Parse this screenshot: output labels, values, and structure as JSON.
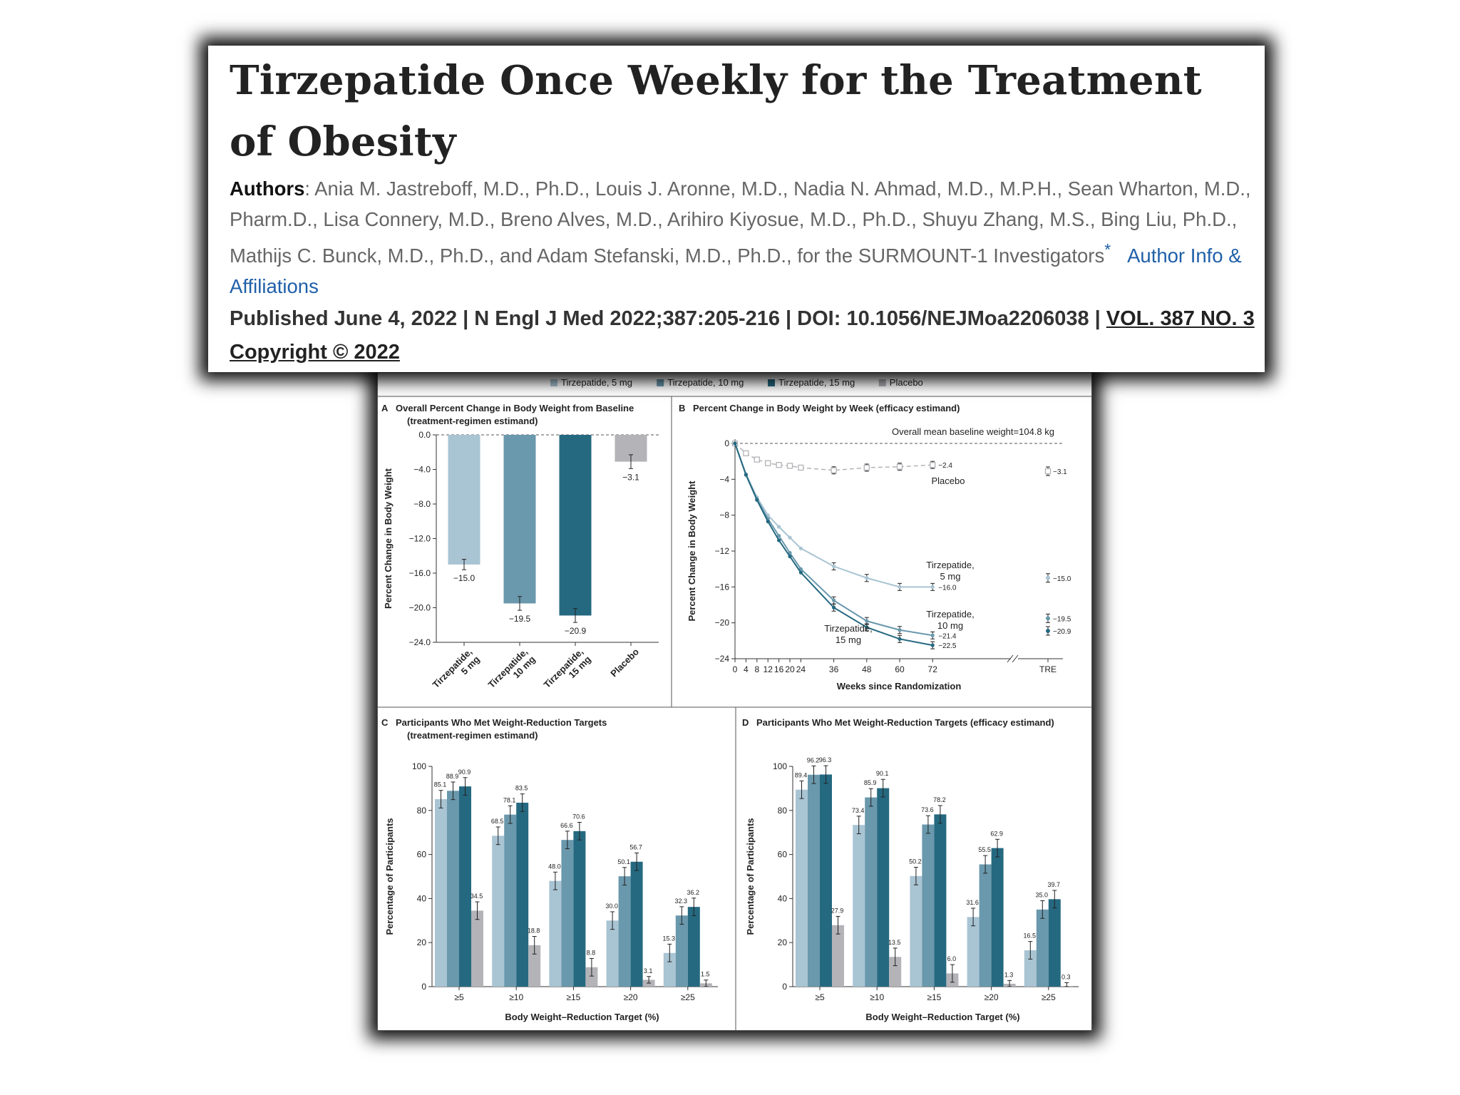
{
  "article": {
    "title": "Tirzepatide Once Weekly for the Treatment of Obesity",
    "authors_label": "Authors",
    "authors_text": ": Ania M. Jastreboff, M.D., Ph.D., Louis J. Aronne, M.D., Nadia N. Ahmad, M.D., M.P.H., Sean Wharton, M.D., Pharm.D., Lisa Connery, M.D., Breno Alves, M.D., Arihiro Kiyosue, M.D., Ph.D., Shuyu Zhang, M.S., Bing Liu, Ph.D., Mathijs C. Bunck, M.D., Ph.D., and Adam Stefanski, M.D., Ph.D., for the SURMOUNT-1 Investigators",
    "asterisk": "*",
    "author_info_link": "Author Info & Affiliations",
    "published": "Published June 4, 2022",
    "journal": "N Engl J Med 2022;387:205-216",
    "doi": "DOI: 10.1056/NEJMoa2206038",
    "volume": "VOL. 387 NO. 3",
    "copyright": "Copyright © 2022",
    "separator": "|"
  },
  "colors": {
    "tz5": "#a9c4d3",
    "tz10": "#6a98ac",
    "tz15": "#256980",
    "placebo": "#b3b3b8"
  },
  "legend": [
    {
      "key": "tz5",
      "label": "Tirzepatide, 5 mg"
    },
    {
      "key": "tz10",
      "label": "Tirzepatide, 10 mg"
    },
    {
      "key": "tz15",
      "label": "Tirzepatide, 15 mg"
    },
    {
      "key": "placebo",
      "label": "Placebo"
    }
  ],
  "chart_data": [
    {
      "panel": "A",
      "type": "bar",
      "title_line1": "Overall Percent Change in Body Weight from Baseline",
      "title_line2": "(treatment-regimen estimand)",
      "ylabel": "Percent Change in Body Weight",
      "ylim": [
        -24,
        0
      ],
      "yticks": [
        0,
        -4,
        -8,
        -12,
        -16,
        -20,
        -24
      ],
      "ytick_labels": [
        "0.0",
        "−4.0",
        "−8.0",
        "−12.0",
        "−16.0",
        "−20.0",
        "−24.0"
      ],
      "categories": [
        "Tirzepatide,\n5 mg",
        "Tirzepatide,\n10 mg",
        "Tirzepatide,\n15 mg",
        "Placebo"
      ],
      "series_keys": [
        "tz5",
        "tz10",
        "tz15",
        "placebo"
      ],
      "values": [
        -15.0,
        -19.5,
        -20.9,
        -3.1
      ],
      "value_labels": [
        "−15.0",
        "−19.5",
        "−20.9",
        "−3.1"
      ],
      "errors": [
        0.6,
        0.8,
        0.8,
        0.8
      ]
    },
    {
      "panel": "B",
      "type": "line",
      "title": "Percent Change in Body Weight by Week (efficacy estimand)",
      "annotation": "Overall mean baseline weight=104.8 kg",
      "xlabel": "Weeks since Randomization",
      "ylabel": "Percent Change in Body Weight",
      "ylim": [
        -24,
        0
      ],
      "yticks": [
        0,
        -4,
        -8,
        -12,
        -16,
        -20,
        -24
      ],
      "ytick_labels": [
        "0",
        "−4",
        "−8",
        "−12",
        "−16",
        "−20",
        "−24"
      ],
      "x": [
        0,
        4,
        8,
        12,
        16,
        20,
        24,
        36,
        48,
        60,
        72
      ],
      "xtick_labels": [
        "0",
        "4",
        "8",
        "12",
        "16",
        "20",
        "24",
        "36",
        "48",
        "60",
        "72",
        "TRE"
      ],
      "series": [
        {
          "key": "placebo",
          "name": "Placebo",
          "values": [
            0,
            -1.1,
            -1.8,
            -2.2,
            -2.4,
            -2.5,
            -2.7,
            -3.0,
            -2.7,
            -2.6,
            -2.4
          ],
          "end_label": "−2.4",
          "tre": -3.1,
          "tre_label": "−3.1"
        },
        {
          "key": "tz5",
          "name": "Tirzepatide,\n5 mg",
          "values": [
            0,
            -3.4,
            -6.0,
            -8.0,
            -9.3,
            -10.5,
            -11.7,
            -13.7,
            -15.0,
            -16.0,
            -16.0
          ],
          "end_label": "−16.0",
          "tre": -15.0,
          "tre_label": "−15.0"
        },
        {
          "key": "tz10",
          "name": "Tirzepatide,\n10 mg",
          "values": [
            0,
            -3.5,
            -6.2,
            -8.4,
            -10.3,
            -12.2,
            -14.0,
            -17.5,
            -19.8,
            -20.8,
            -21.4
          ],
          "end_label": "−21.4",
          "tre": -19.5,
          "tre_label": "−19.5"
        },
        {
          "key": "tz15",
          "name": "Tirzepatide,\n15 mg",
          "values": [
            0,
            -3.5,
            -6.3,
            -8.7,
            -10.8,
            -12.6,
            -14.4,
            -18.3,
            -20.5,
            -21.8,
            -22.5
          ],
          "end_label": "−22.5",
          "tre": -20.9,
          "tre_label": "−20.9"
        }
      ]
    },
    {
      "panel": "C",
      "type": "bar",
      "title_line1": "Participants Who Met Weight-Reduction Targets",
      "title_line2": "(treatment-regimen estimand)",
      "xlabel": "Body Weight–Reduction Target (%)",
      "ylabel": "Percentage of Participants",
      "ylim": [
        0,
        100
      ],
      "yticks": [
        0,
        20,
        40,
        60,
        80,
        100
      ],
      "categories": [
        "≥5",
        "≥10",
        "≥15",
        "≥20",
        "≥25"
      ],
      "series": [
        {
          "key": "tz5",
          "values": [
            85.1,
            68.5,
            48.0,
            30.0,
            15.3
          ]
        },
        {
          "key": "tz10",
          "values": [
            88.9,
            78.1,
            66.6,
            50.1,
            32.3
          ]
        },
        {
          "key": "tz15",
          "values": [
            90.9,
            83.5,
            70.6,
            56.7,
            36.2
          ]
        },
        {
          "key": "placebo",
          "values": [
            34.5,
            18.8,
            8.8,
            3.1,
            1.5
          ]
        }
      ]
    },
    {
      "panel": "D",
      "type": "bar",
      "title_line1": "Participants Who Met Weight-Reduction Targets (efficacy estimand)",
      "xlabel": "Body Weight–Reduction Target (%)",
      "ylabel": "Percentage of Participants",
      "ylim": [
        0,
        100
      ],
      "yticks": [
        0,
        20,
        40,
        60,
        80,
        100
      ],
      "categories": [
        "≥5",
        "≥10",
        "≥15",
        "≥20",
        "≥25"
      ],
      "series": [
        {
          "key": "tz5",
          "values": [
            89.4,
            73.4,
            50.2,
            31.6,
            16.5
          ]
        },
        {
          "key": "tz10",
          "values": [
            96.2,
            85.9,
            73.6,
            55.5,
            35.0
          ]
        },
        {
          "key": "tz15",
          "values": [
            96.3,
            90.1,
            78.2,
            62.9,
            39.7
          ]
        },
        {
          "key": "placebo",
          "values": [
            27.9,
            13.5,
            6.0,
            1.3,
            0.3
          ]
        }
      ]
    }
  ]
}
